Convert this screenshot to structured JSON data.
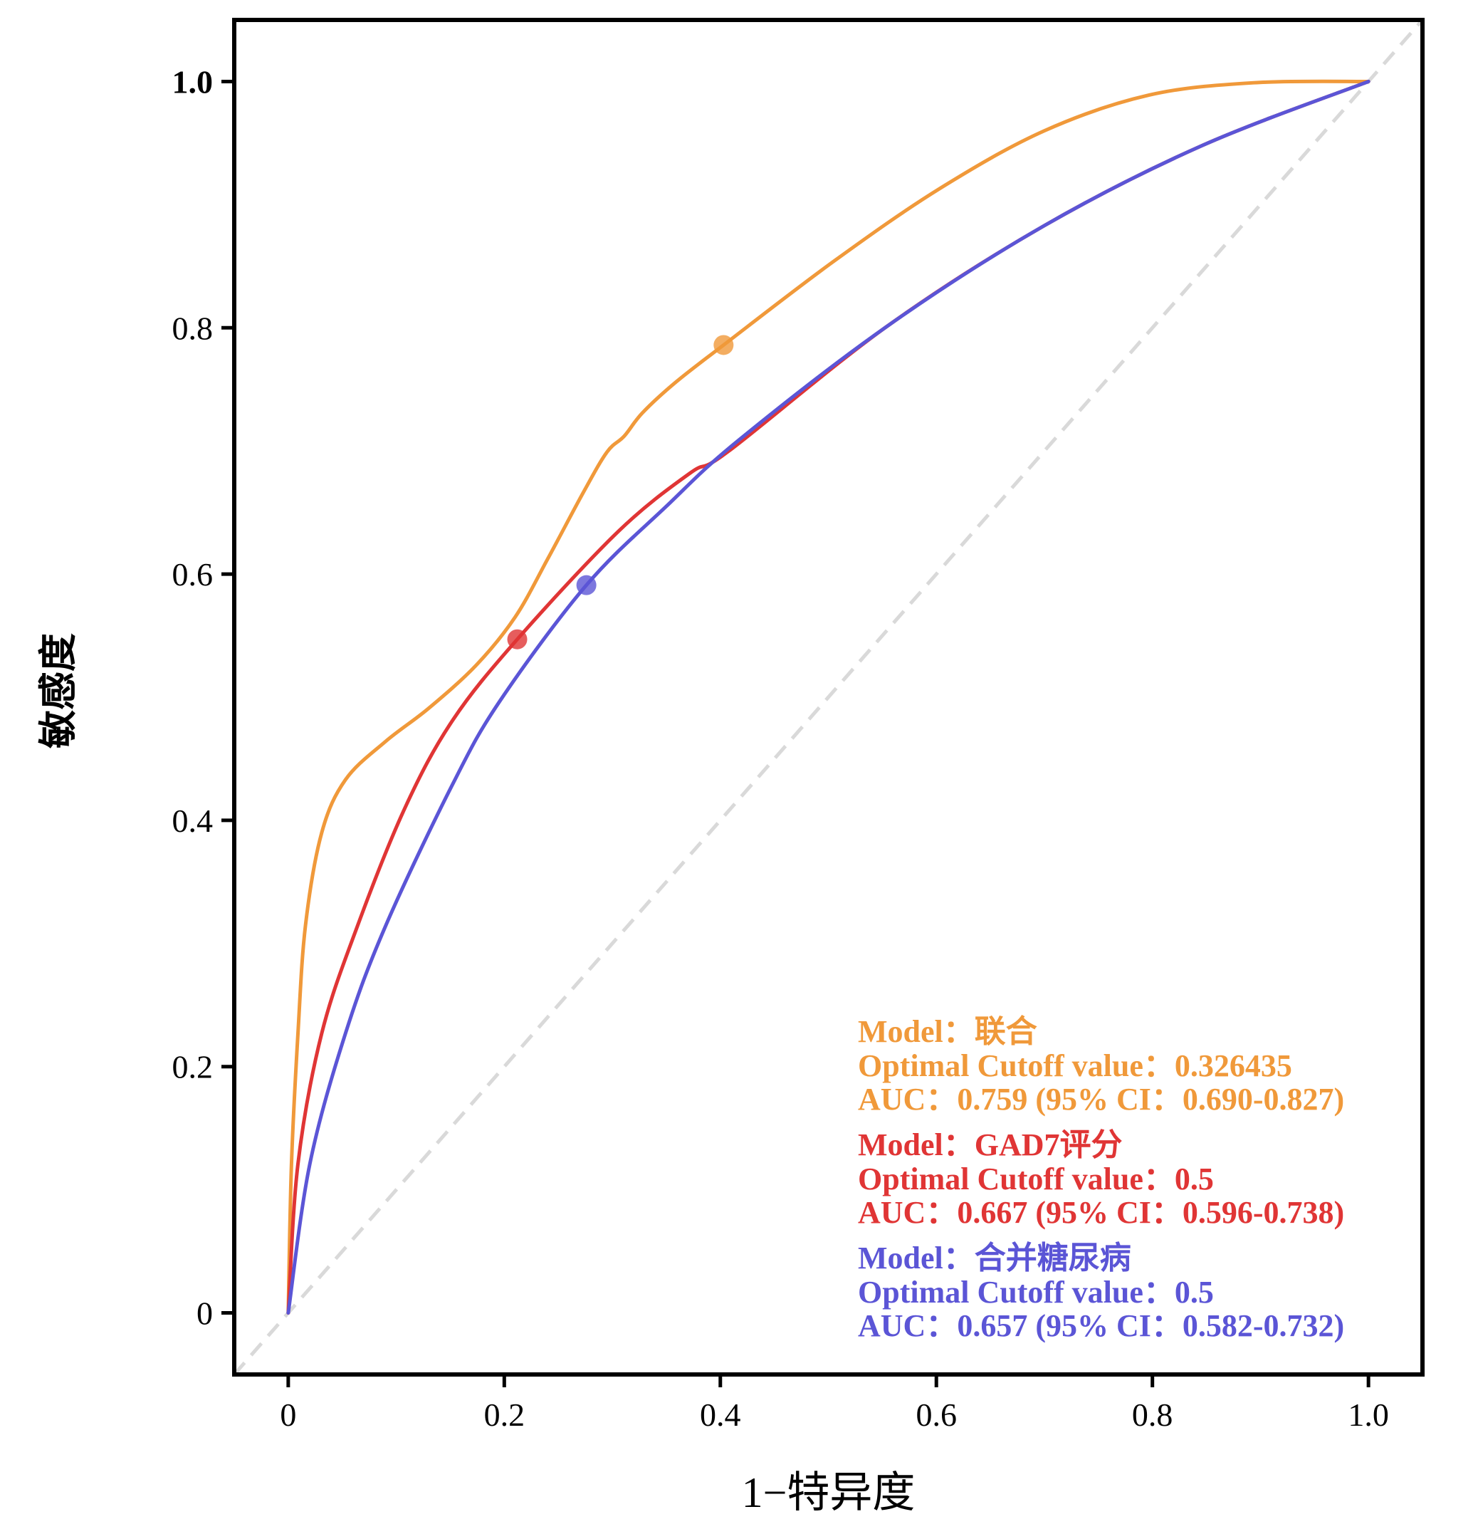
{
  "chart_data": {
    "type": "line",
    "title": "",
    "xlabel": "1−特异度",
    "ylabel": "敏感度",
    "xlim": [
      -0.05,
      1.05
    ],
    "ylim": [
      -0.05,
      1.05
    ],
    "grid": false,
    "legend_placement": "bottom-right",
    "x_ticks": [
      {
        "value": 0,
        "label": "0"
      },
      {
        "value": 0.2,
        "label": "0.2"
      },
      {
        "value": 0.4,
        "label": "0.4"
      },
      {
        "value": 0.6,
        "label": "0.6"
      },
      {
        "value": 0.8,
        "label": "0.8"
      },
      {
        "value": 1.0,
        "label": "1.0"
      }
    ],
    "y_ticks": [
      {
        "value": 0,
        "label": "0"
      },
      {
        "value": 0.2,
        "label": "0.2"
      },
      {
        "value": 0.4,
        "label": "0.4"
      },
      {
        "value": 0.6,
        "label": "0.6"
      },
      {
        "value": 0.8,
        "label": "0.8"
      },
      {
        "value": 1.0,
        "label": "1.0"
      }
    ],
    "reference_line": {
      "name": "chance",
      "x": [
        0,
        1
      ],
      "y": [
        0,
        1
      ],
      "style": "dashed",
      "color": "#D9D9D9"
    },
    "series": [
      {
        "name": "联合",
        "color": "#F0993A",
        "x": [
          0,
          0.003,
          0.009,
          0.016,
          0.031,
          0.053,
          0.09,
          0.13,
          0.174,
          0.21,
          0.24,
          0.273,
          0.295,
          0.311,
          0.328,
          0.359,
          0.403,
          0.505,
          0.603,
          0.7,
          0.797,
          0.894,
          1.0
        ],
        "y": [
          0,
          0.121,
          0.227,
          0.315,
          0.39,
          0.433,
          0.464,
          0.491,
          0.526,
          0.565,
          0.612,
          0.666,
          0.699,
          0.712,
          0.731,
          0.756,
          0.786,
          0.854,
          0.913,
          0.96,
          0.989,
          0.999,
          1.0
        ],
        "cutoff_point": {
          "x": 0.403,
          "y": 0.786
        },
        "legend": {
          "model_line": "Model：联合",
          "cutoff_line": "Optimal Cutoff value：0.326435",
          "auc_line": "AUC：0.759 (95% CI：0.690-0.827)"
        }
      },
      {
        "name": "GAD7评分",
        "color": "#E03535",
        "x": [
          0,
          0.009,
          0.031,
          0.064,
          0.108,
          0.152,
          0.212,
          0.306,
          0.372,
          0.408,
          0.554,
          0.7,
          0.846,
          1.0
        ],
        "y": [
          0,
          0.121,
          0.227,
          0.314,
          0.41,
          0.481,
          0.547,
          0.635,
          0.682,
          0.7,
          0.801,
          0.883,
          0.948,
          1.0
        ],
        "cutoff_point": {
          "x": 0.212,
          "y": 0.547
        },
        "legend": {
          "model_line": "Model：GAD7评分",
          "cutoff_line": "Optimal Cutoff value：0.5",
          "auc_line": "AUC：0.667 (95% CI：0.596-0.738)"
        }
      },
      {
        "name": "合并糖尿病",
        "color": "#5B55D6",
        "x": [
          0,
          0.02,
          0.053,
          0.09,
          0.152,
          0.196,
          0.276,
          0.35,
          0.416,
          0.554,
          0.7,
          0.846,
          1.0
        ],
        "y": [
          0,
          0.121,
          0.227,
          0.314,
          0.429,
          0.497,
          0.591,
          0.655,
          0.708,
          0.801,
          0.883,
          0.948,
          1.0
        ],
        "cutoff_point": {
          "x": 0.276,
          "y": 0.591
        },
        "legend": {
          "model_line": "Model：合并糖尿病",
          "cutoff_line": "Optimal Cutoff value：0.5",
          "auc_line": "AUC：0.657 (95% CI：0.582-0.732)"
        }
      }
    ]
  }
}
